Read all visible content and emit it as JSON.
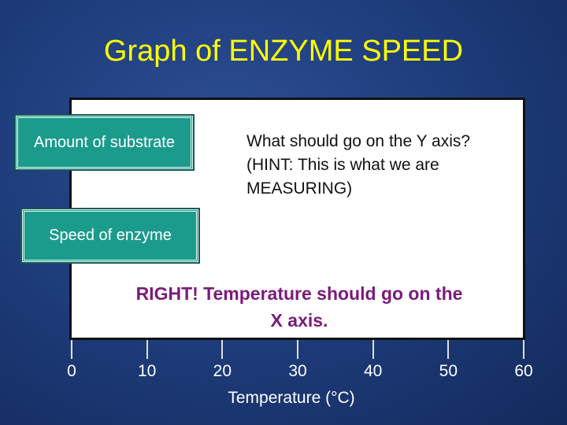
{
  "title": "Graph of ENZYME SPEED",
  "buttons": [
    "Amount of substrate",
    "Speed of enzyme"
  ],
  "question": [
    "What should go on the Y axis?",
    "(HINT: This is what we are",
    "MEASURING)"
  ],
  "answer": [
    "RIGHT! Temperature should go on the",
    "X axis."
  ],
  "axis": {
    "label": "Temperature (°C)",
    "ticks": [
      0,
      10,
      20,
      30,
      40,
      50,
      60
    ]
  }
}
